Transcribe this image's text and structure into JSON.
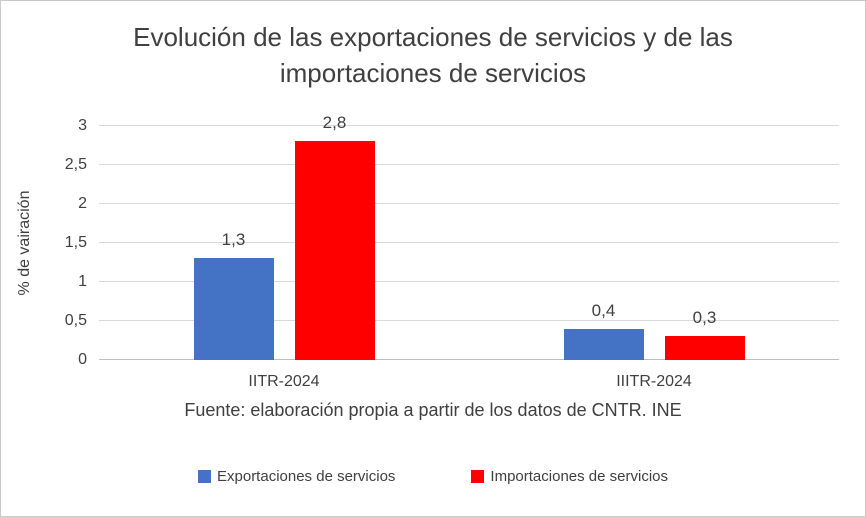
{
  "chart_data": {
    "type": "bar",
    "title": "Evolución de las exportaciones de servicios y de las importaciones de servicios",
    "xlabel": "",
    "ylabel": "% de vairación",
    "ylim": [
      0,
      3
    ],
    "grid": true,
    "legend_position": "bottom",
    "yticks": [
      {
        "value": 0,
        "label": "0"
      },
      {
        "value": 0.5,
        "label": "0,5"
      },
      {
        "value": 1,
        "label": "1"
      },
      {
        "value": 1.5,
        "label": "1,5"
      },
      {
        "value": 2,
        "label": "2"
      },
      {
        "value": 2.5,
        "label": "2,5"
      },
      {
        "value": 3,
        "label": "3"
      }
    ],
    "categories": [
      "IITR-2024",
      "IIITR-2024"
    ],
    "series": [
      {
        "name": "Exportaciones de servicios",
        "color": "#4472C4",
        "values": [
          1.3,
          0.4
        ],
        "labels": [
          "1,3",
          "0,4"
        ]
      },
      {
        "name": "Importaciones de servicios",
        "color": "#FF0000",
        "values": [
          2.8,
          0.3
        ],
        "labels": [
          "2,8",
          "0,3"
        ]
      }
    ],
    "caption": "Fuente: elaboración propia a partir de los datos de CNTR. INE"
  },
  "colors": {
    "text": "#404040",
    "gridline": "#D9D9D9",
    "axis_line": "#BFBFBF",
    "background": "#FFFFFF",
    "series_blue": "#4472C4",
    "series_red": "#FF0000"
  }
}
